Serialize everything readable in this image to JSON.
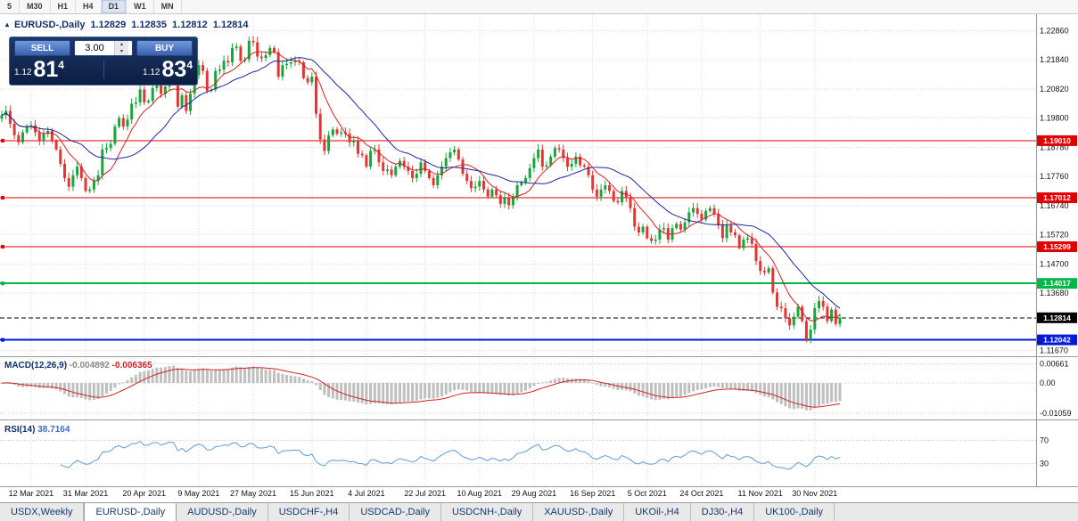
{
  "toolbar": {
    "timeframes": [
      "5",
      "M30",
      "H1",
      "H4",
      "D1",
      "W1",
      "MN"
    ],
    "active": "D1"
  },
  "header": {
    "title": "EURUSD-,Daily"
  },
  "icons": {
    "volume_up": "▴",
    "volume_down": "▾",
    "symbol_marker": "▴"
  },
  "trade_panel": {
    "sell_label": "SELL",
    "buy_label": "BUY",
    "volume": "3.00",
    "sell_price_small": "1.12",
    "sell_price_big": "81",
    "sell_price_sup": "4",
    "buy_price_small": "1.12",
    "buy_price_big": "83",
    "buy_price_sup": "4"
  },
  "tabs": [
    {
      "label": "USDX,Weekly",
      "active": false
    },
    {
      "label": "EURUSD-,Daily",
      "active": true
    },
    {
      "label": "AUDUSD-,Daily",
      "active": false
    },
    {
      "label": "USDCHF-,H4",
      "active": false
    },
    {
      "label": "USDCAD-,Daily",
      "active": false
    },
    {
      "label": "USDCNH-,Daily",
      "active": false
    },
    {
      "label": "XAUUSD-,Daily",
      "active": false
    },
    {
      "label": "UKOil-,H4",
      "active": false
    },
    {
      "label": "DJ30-,H4",
      "active": false
    },
    {
      "label": "UK100-,Daily",
      "active": false
    }
  ],
  "theme": {
    "candle_up": "#17a53c",
    "candle_down": "#e23535",
    "ma_fast": "#cf2121",
    "ma_slow": "#20259c",
    "grid": "#dadada",
    "separator": "#9a9a9a",
    "macd_hist": "#bfbfbf",
    "macd_signal": "#cf2121",
    "rsi_line": "#5b9bd5",
    "axis_text": "#111111",
    "label_navy": "#10316b",
    "label_gray": "#8a8a8a",
    "label_red": "#cc2222",
    "label_blue": "#3a6fc4"
  },
  "chart_data": {
    "type": "candlestick",
    "symbol": "EURUSD-",
    "timeframe": "Daily",
    "ohlc_display": {
      "open": "1.12829",
      "high": "1.12835",
      "low": "1.12812",
      "close": "1.12814"
    },
    "price_min": 1.115,
    "price_max": 1.234,
    "y_ticks": [
      "1.22860",
      "1.21840",
      "1.20820",
      "1.19800",
      "1.18780",
      "1.17760",
      "1.16740",
      "1.15720",
      "1.14700",
      "1.13680",
      "1.11670"
    ],
    "x_labels": [
      "12 Mar 2021",
      "31 Mar 2021",
      "20 Apr 2021",
      "9 May 2021",
      "27 May 2021",
      "15 Jun 2021",
      "4 Jul 2021",
      "22 Jul 2021",
      "10 Aug 2021",
      "29 Aug 2021",
      "16 Sep 2021",
      "5 Oct 2021",
      "24 Oct 2021",
      "11 Nov 2021",
      "30 Nov 2021"
    ],
    "x_label_indices": [
      7,
      20,
      34,
      47,
      60,
      74,
      87,
      101,
      114,
      127,
      141,
      154,
      167,
      181,
      194
    ],
    "closes": [
      1.199,
      1.2005,
      1.196,
      1.192,
      1.1895,
      1.193,
      1.195,
      1.1955,
      1.193,
      1.19,
      1.1925,
      1.1935,
      1.19,
      1.187,
      1.182,
      1.177,
      1.174,
      1.178,
      1.181,
      1.177,
      1.1725,
      1.173,
      1.176,
      1.178,
      1.187,
      1.1875,
      1.189,
      1.195,
      1.198,
      1.195,
      1.1975,
      1.203,
      1.2035,
      1.208,
      1.2035,
      1.204,
      1.2085,
      1.2095,
      1.2065,
      1.209,
      1.2125,
      1.212,
      1.202,
      1.206,
      1.2005,
      1.2065,
      1.213,
      1.2165,
      1.2145,
      1.2075,
      1.208,
      1.2145,
      1.215,
      1.218,
      1.2175,
      1.2225,
      1.223,
      1.218,
      1.2185,
      1.225,
      1.2245,
      1.2195,
      1.219,
      1.22,
      1.2225,
      1.221,
      1.2125,
      1.2165,
      1.217,
      1.2175,
      1.218,
      1.2175,
      1.212,
      1.2105,
      1.2125,
      1.1995,
      1.1905,
      1.1865,
      1.192,
      1.194,
      1.1925,
      1.193,
      1.1925,
      1.1895,
      1.19,
      1.1855,
      1.185,
      1.181,
      1.1865,
      1.187,
      1.1825,
      1.1795,
      1.18,
      1.178,
      1.181,
      1.183,
      1.181,
      1.1795,
      1.177,
      1.1785,
      1.1825,
      1.1795,
      1.177,
      1.1745,
      1.178,
      1.181,
      1.184,
      1.186,
      1.187,
      1.1835,
      1.1785,
      1.176,
      1.1735,
      1.174,
      1.176,
      1.173,
      1.1705,
      1.173,
      1.171,
      1.168,
      1.17,
      1.1675,
      1.17,
      1.1745,
      1.1755,
      1.177,
      1.1805,
      1.184,
      1.187,
      1.181,
      1.1815,
      1.1845,
      1.1875,
      1.187,
      1.184,
      1.181,
      1.182,
      1.1845,
      1.1815,
      1.181,
      1.178,
      1.173,
      1.1705,
      1.173,
      1.1745,
      1.1725,
      1.169,
      1.1685,
      1.1725,
      1.17,
      1.1665,
      1.16,
      1.158,
      1.16,
      1.156,
      1.155,
      1.1555,
      1.159,
      1.1595,
      1.1555,
      1.1595,
      1.161,
      1.159,
      1.1615,
      1.165,
      1.1665,
      1.1645,
      1.1625,
      1.1655,
      1.1665,
      1.1645,
      1.1605,
      1.156,
      1.1605,
      1.158,
      1.157,
      1.1525,
      1.1555,
      1.156,
      1.154,
      1.148,
      1.1445,
      1.144,
      1.1455,
      1.137,
      1.132,
      1.1315,
      1.128,
      1.1255,
      1.1285,
      1.132,
      1.127,
      1.1205,
      1.124,
      1.1315,
      1.134,
      1.132,
      1.127,
      1.131,
      1.126,
      1.12814
    ],
    "ma": {
      "fast_period": 8,
      "slow_period": 20
    },
    "levels": [
      {
        "price": 1.1901,
        "label": "1.19010",
        "color": "#e00000",
        "width": 1,
        "style": "solid",
        "marker": true
      },
      {
        "price": 1.17012,
        "label": "1.17012",
        "color": "#e00000",
        "width": 1,
        "style": "solid",
        "marker": true
      },
      {
        "price": 1.15299,
        "label": "1.15299",
        "color": "#e00000",
        "width": 1,
        "style": "solid",
        "marker": true
      },
      {
        "price": 1.14017,
        "label": "1.14017",
        "color": "#00b84a",
        "width": 2,
        "style": "solid",
        "marker": true
      },
      {
        "price": 1.12042,
        "label": "1.12042",
        "color": "#0018d8",
        "width": 2,
        "style": "solid",
        "marker": true
      },
      {
        "price": 1.12814,
        "label": "1.12814",
        "color": "#000000",
        "width": 1,
        "style": "dashed",
        "marker": false
      }
    ],
    "indicators": {
      "macd": {
        "label": "MACD(12,26,9)",
        "main_value": "-0.004892",
        "signal_value": "-0.006365",
        "fast": 12,
        "slow": 26,
        "signal_period": 9,
        "axis": [
          "0.00661",
          "0.00",
          "-0.01059"
        ]
      },
      "rsi": {
        "label": "RSI(14)",
        "value": "38.7164",
        "period": 14,
        "axis": [
          "70",
          "30"
        ]
      }
    }
  }
}
